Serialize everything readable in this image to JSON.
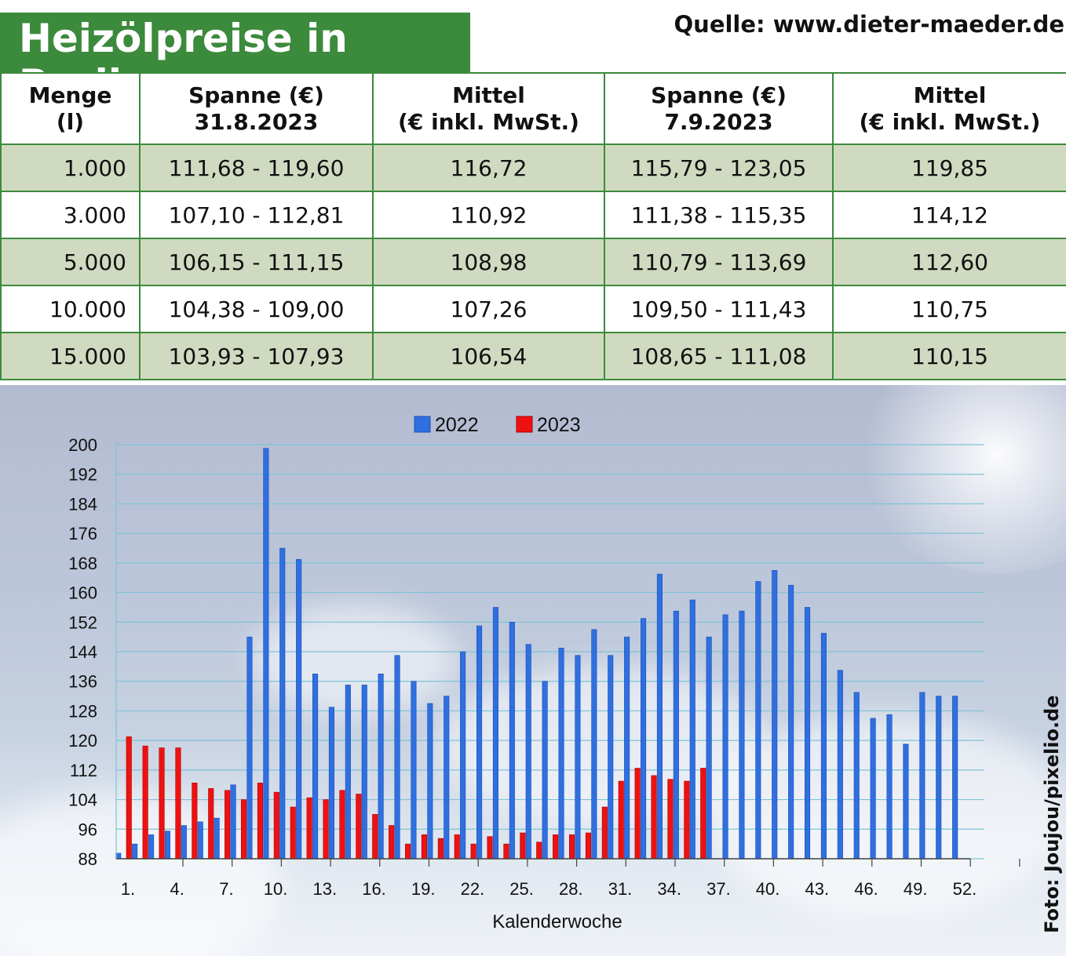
{
  "header": {
    "title": "Heizölpreise in Berlin",
    "source": "Quelle: www.dieter-maeder.de"
  },
  "table": {
    "headers": [
      [
        "Menge",
        "(l)"
      ],
      [
        "Spanne (€)",
        "31.8.2023"
      ],
      [
        "Mittel",
        "(€ inkl. MwSt.)"
      ],
      [
        "Spanne (€)",
        "7.9.2023"
      ],
      [
        "Mittel",
        "(€ inkl. MwSt.)"
      ]
    ],
    "rows": [
      [
        "1.000",
        "111,68 - 119,60",
        "116,72",
        "115,79 - 123,05",
        "119,85"
      ],
      [
        "3.000",
        "107,10 - 112,81",
        "110,92",
        "111,38 - 115,35",
        "114,12"
      ],
      [
        "5.000",
        "106,15 - 111,15",
        "108,98",
        "110,79 - 113,69",
        "112,60"
      ],
      [
        "10.000",
        "104,38 - 109,00",
        "107,26",
        "109,50 - 111,43",
        "110,75"
      ],
      [
        "15.000",
        "103,93 - 107,93",
        "106,54",
        "108,65 - 111,08",
        "110,15"
      ]
    ]
  },
  "colors": {
    "header_green": "#3c8a3c",
    "row_shade": "#d0dac0",
    "series_2022": "#2f6fe0",
    "series_2023": "#ee1111"
  },
  "credit": "Foto: Joujou/pixelio.de",
  "chart_data": {
    "type": "bar",
    "xlabel": "Kalenderwoche",
    "ylabel": "",
    "ylim": [
      88,
      200
    ],
    "yticks": [
      88,
      96,
      104,
      112,
      120,
      128,
      136,
      144,
      152,
      160,
      168,
      176,
      184,
      192,
      200
    ],
    "xtick_labels": [
      "1.",
      "4.",
      "7.",
      "10.",
      "13.",
      "16.",
      "19.",
      "22.",
      "25.",
      "28.",
      "31.",
      "34.",
      "37.",
      "40.",
      "43.",
      "46.",
      "49.",
      "52."
    ],
    "xtick_weeks": [
      1,
      4,
      7,
      10,
      13,
      16,
      19,
      22,
      25,
      28,
      31,
      34,
      37,
      40,
      43,
      46,
      49,
      52
    ],
    "grid": true,
    "legend_position": "top",
    "series": [
      {
        "name": "2022",
        "color": "#2f6fe0",
        "weeks": [
          1,
          2,
          3,
          4,
          5,
          6,
          7,
          8,
          9,
          10,
          11,
          12,
          13,
          14,
          15,
          16,
          17,
          18,
          19,
          20,
          21,
          22,
          23,
          24,
          25,
          26,
          27,
          28,
          29,
          30,
          31,
          32,
          33,
          34,
          35,
          36,
          37,
          38,
          39,
          40,
          41,
          42,
          43,
          44,
          45,
          46,
          47,
          48,
          49,
          50,
          51,
          52
        ],
        "values": [
          89.5,
          92,
          94.5,
          95.5,
          97,
          98,
          99,
          108,
          148,
          199,
          172,
          169,
          138,
          129,
          135,
          135,
          138,
          143,
          136,
          130,
          132,
          144,
          151,
          156,
          152,
          146,
          136,
          145,
          143,
          150,
          143,
          148,
          153,
          165,
          155,
          158,
          148,
          154,
          155,
          163,
          166,
          162,
          156,
          149,
          139,
          133,
          126,
          127,
          119,
          133,
          132,
          132
        ]
      },
      {
        "name": "2023",
        "color": "#ee1111",
        "weeks": [
          1,
          2,
          3,
          4,
          5,
          6,
          7,
          8,
          9,
          10,
          11,
          12,
          13,
          14,
          15,
          16,
          17,
          18,
          19,
          20,
          21,
          22,
          23,
          24,
          25,
          26,
          27,
          28,
          29,
          30,
          31,
          32,
          33,
          34,
          35,
          36
        ],
        "values": [
          121,
          118.5,
          118,
          118,
          108.5,
          107,
          106.5,
          104,
          108.5,
          106,
          102,
          104.5,
          104,
          106.5,
          105.5,
          100,
          97,
          92,
          94.5,
          93.5,
          94.5,
          92,
          94,
          92,
          95,
          92.5,
          94.5,
          94.5,
          95,
          102,
          109,
          112.5,
          110.5,
          109.5,
          109,
          112.5
        ]
      }
    ]
  }
}
